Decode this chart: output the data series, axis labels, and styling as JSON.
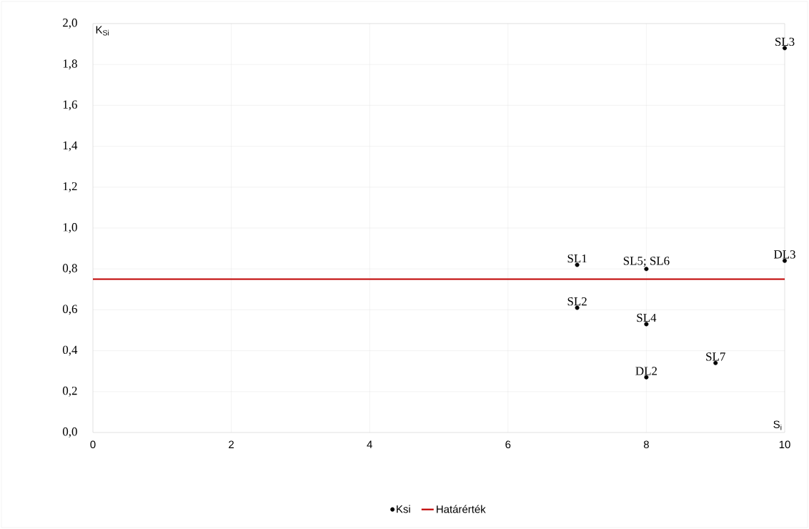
{
  "chart_data": {
    "type": "scatter",
    "xlabel": "S$_{i}$",
    "ylabel": "K$_{Si}$",
    "series": [
      {
        "name": "Ksi",
        "marker": "circle",
        "color": "#000000",
        "x": [
          10,
          7,
          8,
          10,
          7,
          8,
          9,
          8
        ],
        "values": [
          1.88,
          0.82,
          0.8,
          0.84,
          0.61,
          0.53,
          0.34,
          0.27
        ]
      },
      {
        "name": "Határérték",
        "type": "line",
        "marker": "none",
        "color": "#c00000",
        "x": [
          0,
          10
        ],
        "values": [
          0.75,
          0.75
        ]
      }
    ],
    "annotations": [
      {
        "text": "SL3",
        "x": 10,
        "y": 1.88
      },
      {
        "text": "SL1",
        "x": 7,
        "y": 0.82
      },
      {
        "text": "SL5; SL6",
        "x": 8,
        "y": 0.8
      },
      {
        "text": "DL3",
        "x": 10,
        "y": 0.84
      },
      {
        "text": "SL2",
        "x": 7,
        "y": 0.61
      },
      {
        "text": "SL4",
        "x": 8,
        "y": 0.53
      },
      {
        "text": "SL7",
        "x": 9,
        "y": 0.34
      },
      {
        "text": "DL2",
        "x": 8,
        "y": 0.27
      }
    ],
    "xlim": [
      0,
      10
    ],
    "xticks": [
      0,
      2,
      4,
      6,
      8,
      10
    ],
    "ylim": [
      0,
      2
    ],
    "yticks": [
      {
        "value": 0,
        "label": "0,0"
      },
      {
        "value": 0.2,
        "label": "0,2"
      },
      {
        "value": 0.4,
        "label": "0,4"
      },
      {
        "value": 0.6,
        "label": "0,6"
      },
      {
        "value": 0.8,
        "label": "0,8"
      },
      {
        "value": 1,
        "label": "1,0"
      },
      {
        "value": 1.2,
        "label": "1,2"
      },
      {
        "value": 1.4,
        "label": "1,4"
      },
      {
        "value": 1.6,
        "label": "1,6"
      },
      {
        "value": 1.8,
        "label": "1,8"
      },
      {
        "value": 2,
        "label": "2,0"
      }
    ],
    "grid": true,
    "legend": "bottom",
    "line_style": "solid"
  }
}
